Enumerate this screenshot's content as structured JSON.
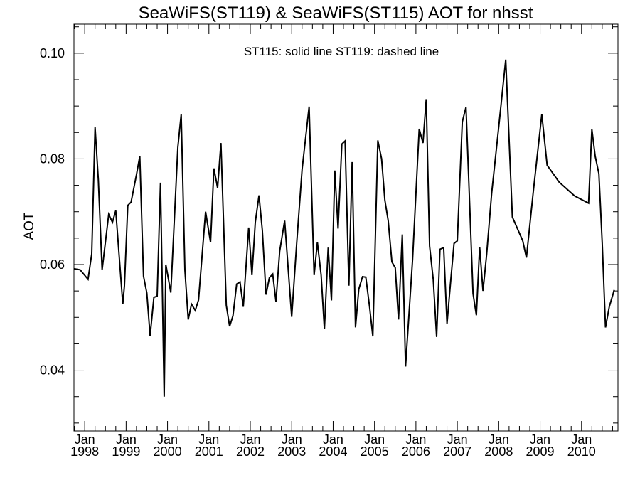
{
  "chart_data": {
    "type": "line",
    "title": "SeaWiFS(ST119) & SeaWiFS(ST115)  AOT for nhsst",
    "annotation": "ST115: solid line   ST119: dashed line",
    "xlabel": "",
    "ylabel": "AOT",
    "ylim": [
      0.0285,
      0.1055
    ],
    "xlim": [
      1997.74,
      2010.88
    ],
    "yticks": [
      {
        "value": 0.04,
        "label": "0.04"
      },
      {
        "value": 0.06,
        "label": "0.06"
      },
      {
        "value": 0.08,
        "label": "0.08"
      },
      {
        "value": 0.1,
        "label": "0.10"
      }
    ],
    "xticks": [
      {
        "value": 1998,
        "label": "Jan",
        "year": "1998"
      },
      {
        "value": 1999,
        "label": "Jan",
        "year": "1999"
      },
      {
        "value": 2000,
        "label": "Jan",
        "year": "2000"
      },
      {
        "value": 2001,
        "label": "Jan",
        "year": "2001"
      },
      {
        "value": 2002,
        "label": "Jan",
        "year": "2002"
      },
      {
        "value": 2003,
        "label": "Jan",
        "year": "2003"
      },
      {
        "value": 2004,
        "label": "Jan",
        "year": "2004"
      },
      {
        "value": 2005,
        "label": "Jan",
        "year": "2005"
      },
      {
        "value": 2006,
        "label": "Jan",
        "year": "2006"
      },
      {
        "value": 2007,
        "label": "Jan",
        "year": "2007"
      },
      {
        "value": 2008,
        "label": "Jan",
        "year": "2008"
      },
      {
        "value": 2009,
        "label": "Jan",
        "year": "2009"
      },
      {
        "value": 2010,
        "label": "Jan",
        "year": "2010"
      }
    ],
    "series": [
      {
        "name": "ST115",
        "style": "solid",
        "color": "#000000",
        "points": [
          [
            1997.74,
            0.0592
          ],
          [
            1997.89,
            0.059
          ],
          [
            1998.08,
            0.0572
          ],
          [
            1998.17,
            0.062
          ],
          [
            1998.25,
            0.086
          ],
          [
            1998.33,
            0.076
          ],
          [
            1998.42,
            0.059
          ],
          [
            1998.58,
            0.0695
          ],
          [
            1998.67,
            0.068
          ],
          [
            1998.75,
            0.0702
          ],
          [
            1998.92,
            0.0525
          ],
          [
            1998.96,
            0.056
          ],
          [
            1999.04,
            0.0712
          ],
          [
            1999.12,
            0.0718
          ],
          [
            1999.25,
            0.077
          ],
          [
            1999.33,
            0.0805
          ],
          [
            1999.42,
            0.0578
          ],
          [
            1999.5,
            0.0546
          ],
          [
            1999.58,
            0.0465
          ],
          [
            1999.67,
            0.0538
          ],
          [
            1999.75,
            0.054
          ],
          [
            1999.83,
            0.0755
          ],
          [
            1999.92,
            0.035
          ],
          [
            1999.96,
            0.06
          ],
          [
            2000.08,
            0.0547
          ],
          [
            2000.25,
            0.0822
          ],
          [
            2000.33,
            0.0884
          ],
          [
            2000.42,
            0.059
          ],
          [
            2000.5,
            0.0496
          ],
          [
            2000.58,
            0.0525
          ],
          [
            2000.67,
            0.0513
          ],
          [
            2000.75,
            0.0533
          ],
          [
            2000.92,
            0.07
          ],
          [
            2001.04,
            0.0642
          ],
          [
            2001.12,
            0.0782
          ],
          [
            2001.21,
            0.0745
          ],
          [
            2001.29,
            0.083
          ],
          [
            2001.42,
            0.0523
          ],
          [
            2001.5,
            0.0483
          ],
          [
            2001.58,
            0.0503
          ],
          [
            2001.67,
            0.0563
          ],
          [
            2001.75,
            0.0567
          ],
          [
            2001.83,
            0.052
          ],
          [
            2001.96,
            0.067
          ],
          [
            2002.04,
            0.058
          ],
          [
            2002.12,
            0.068
          ],
          [
            2002.21,
            0.0731
          ],
          [
            2002.29,
            0.0665
          ],
          [
            2002.38,
            0.0543
          ],
          [
            2002.46,
            0.0575
          ],
          [
            2002.54,
            0.0582
          ],
          [
            2002.62,
            0.053
          ],
          [
            2002.71,
            0.0625
          ],
          [
            2002.83,
            0.0683
          ],
          [
            2003.0,
            0.0501
          ],
          [
            2003.12,
            0.064
          ],
          [
            2003.25,
            0.078
          ],
          [
            2003.42,
            0.0899
          ],
          [
            2003.54,
            0.058
          ],
          [
            2003.62,
            0.0642
          ],
          [
            2003.71,
            0.058
          ],
          [
            2003.79,
            0.0478
          ],
          [
            2003.88,
            0.0632
          ],
          [
            2003.96,
            0.0532
          ],
          [
            2004.04,
            0.0778
          ],
          [
            2004.12,
            0.0668
          ],
          [
            2004.21,
            0.0828
          ],
          [
            2004.29,
            0.0834
          ],
          [
            2004.38,
            0.056
          ],
          [
            2004.46,
            0.0794
          ],
          [
            2004.54,
            0.0481
          ],
          [
            2004.62,
            0.0553
          ],
          [
            2004.71,
            0.0577
          ],
          [
            2004.79,
            0.0576
          ],
          [
            2004.88,
            0.052
          ],
          [
            2004.96,
            0.0464
          ],
          [
            2005.08,
            0.0835
          ],
          [
            2005.17,
            0.08
          ],
          [
            2005.25,
            0.0722
          ],
          [
            2005.33,
            0.0683
          ],
          [
            2005.42,
            0.0605
          ],
          [
            2005.5,
            0.0594
          ],
          [
            2005.58,
            0.0496
          ],
          [
            2005.67,
            0.0657
          ],
          [
            2005.75,
            0.0407
          ],
          [
            2005.92,
            0.061
          ],
          [
            2006.08,
            0.0857
          ],
          [
            2006.17,
            0.083
          ],
          [
            2006.25,
            0.0913
          ],
          [
            2006.33,
            0.0635
          ],
          [
            2006.42,
            0.0571
          ],
          [
            2006.5,
            0.0463
          ],
          [
            2006.58,
            0.0629
          ],
          [
            2006.67,
            0.0632
          ],
          [
            2006.75,
            0.0488
          ],
          [
            2006.83,
            0.056
          ],
          [
            2006.92,
            0.064
          ],
          [
            2007.0,
            0.0645
          ],
          [
            2007.12,
            0.087
          ],
          [
            2007.21,
            0.0898
          ],
          [
            2007.38,
            0.0545
          ],
          [
            2007.46,
            0.0504
          ],
          [
            2007.54,
            0.0633
          ],
          [
            2007.62,
            0.055
          ],
          [
            2007.71,
            0.062
          ],
          [
            2007.83,
            0.0735
          ],
          [
            2008.0,
            0.086
          ],
          [
            2008.17,
            0.0988
          ],
          [
            2008.33,
            0.069
          ],
          [
            2008.58,
            0.0645
          ],
          [
            2008.67,
            0.0613
          ],
          [
            2008.83,
            0.0735
          ],
          [
            2009.04,
            0.0884
          ],
          [
            2009.17,
            0.0788
          ],
          [
            2009.46,
            0.0756
          ],
          [
            2009.83,
            0.073
          ],
          [
            2010.17,
            0.0716
          ],
          [
            2010.25,
            0.0856
          ],
          [
            2010.33,
            0.0805
          ],
          [
            2010.42,
            0.0772
          ],
          [
            2010.5,
            0.064
          ],
          [
            2010.58,
            0.0481
          ],
          [
            2010.67,
            0.052
          ],
          [
            2010.79,
            0.0552
          ]
        ]
      }
    ]
  }
}
